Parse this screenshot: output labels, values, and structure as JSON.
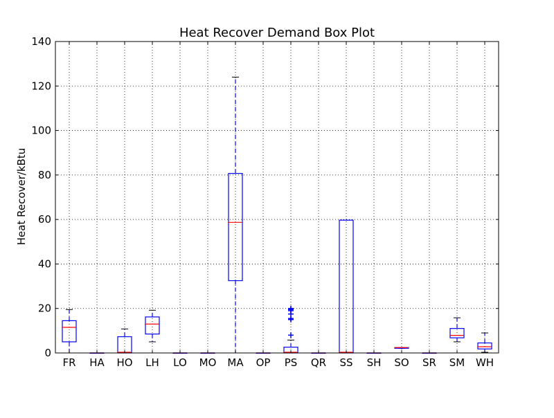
{
  "chart_data": {
    "type": "box",
    "title": "Heat Recover Demand Box Plot",
    "xlabel": "",
    "ylabel": "Heat Recover/kBtu",
    "ylim": [
      0,
      140
    ],
    "yticks": [
      0,
      20,
      40,
      60,
      80,
      100,
      120,
      140
    ],
    "grid": true,
    "categories": [
      "FR",
      "HA",
      "HO",
      "LH",
      "LO",
      "MO",
      "MA",
      "OP",
      "PS",
      "QR",
      "SS",
      "SH",
      "SO",
      "SR",
      "SM",
      "WH"
    ],
    "boxes": [
      {
        "label": "FR",
        "whisker_low": 0,
        "q1": 5,
        "median": 11.5,
        "q3": 14.5,
        "whisker_high": 19.5,
        "outliers": []
      },
      {
        "label": "HA",
        "whisker_low": 0,
        "q1": 0,
        "median": 0,
        "q3": 0,
        "whisker_high": 0,
        "outliers": []
      },
      {
        "label": "HO",
        "whisker_low": 0,
        "q1": 0,
        "median": 0.3,
        "q3": 7.3,
        "whisker_high": 10.8,
        "outliers": []
      },
      {
        "label": "LH",
        "whisker_low": 5,
        "q1": 8.5,
        "median": 13,
        "q3": 16.2,
        "whisker_high": 19.2,
        "outliers": []
      },
      {
        "label": "LO",
        "whisker_low": 0,
        "q1": 0,
        "median": 0,
        "q3": 0,
        "whisker_high": 0,
        "outliers": []
      },
      {
        "label": "MO",
        "whisker_low": 0,
        "q1": 0,
        "median": 0,
        "q3": 0,
        "whisker_high": 0,
        "outliers": []
      },
      {
        "label": "MA",
        "whisker_low": 0,
        "q1": 32.5,
        "median": 58.7,
        "q3": 80.7,
        "whisker_high": 124,
        "outliers": []
      },
      {
        "label": "OP",
        "whisker_low": 0,
        "q1": 0,
        "median": 0,
        "q3": 0,
        "whisker_high": 0,
        "outliers": []
      },
      {
        "label": "PS",
        "whisker_low": 0,
        "q1": 0,
        "median": 0.3,
        "q3": 2.6,
        "whisker_high": 5.8,
        "outliers": [
          8,
          15,
          15.5,
          17.5,
          19,
          19.5,
          20
        ]
      },
      {
        "label": "QR",
        "whisker_low": 0,
        "q1": 0,
        "median": 0,
        "q3": 0,
        "whisker_high": 0,
        "outliers": []
      },
      {
        "label": "SS",
        "whisker_low": 0,
        "q1": 0,
        "median": 0.3,
        "q3": 59.7,
        "whisker_high": 59.7,
        "outliers": []
      },
      {
        "label": "SH",
        "whisker_low": 0,
        "q1": 0,
        "median": 0,
        "q3": 0,
        "whisker_high": 0,
        "outliers": []
      },
      {
        "label": "SO",
        "whisker_low": 2.1,
        "q1": 2.1,
        "median": 2.4,
        "q3": 2.4,
        "whisker_high": 2.4,
        "outliers": []
      },
      {
        "label": "SR",
        "whisker_low": 0,
        "q1": 0,
        "median": 0,
        "q3": 0,
        "whisker_high": 0,
        "outliers": []
      },
      {
        "label": "SM",
        "whisker_low": 5,
        "q1": 6.8,
        "median": 7.9,
        "q3": 11,
        "whisker_high": 15.8,
        "outliers": []
      },
      {
        "label": "WH",
        "whisker_low": 0.3,
        "q1": 1.8,
        "median": 2.8,
        "q3": 4.5,
        "whisker_high": 9,
        "outliers": []
      }
    ],
    "colors": {
      "box": "#0000ff",
      "median": "#ff0000",
      "outlier": "#0000ff",
      "grid": "#000000",
      "frame": "#000000"
    }
  }
}
